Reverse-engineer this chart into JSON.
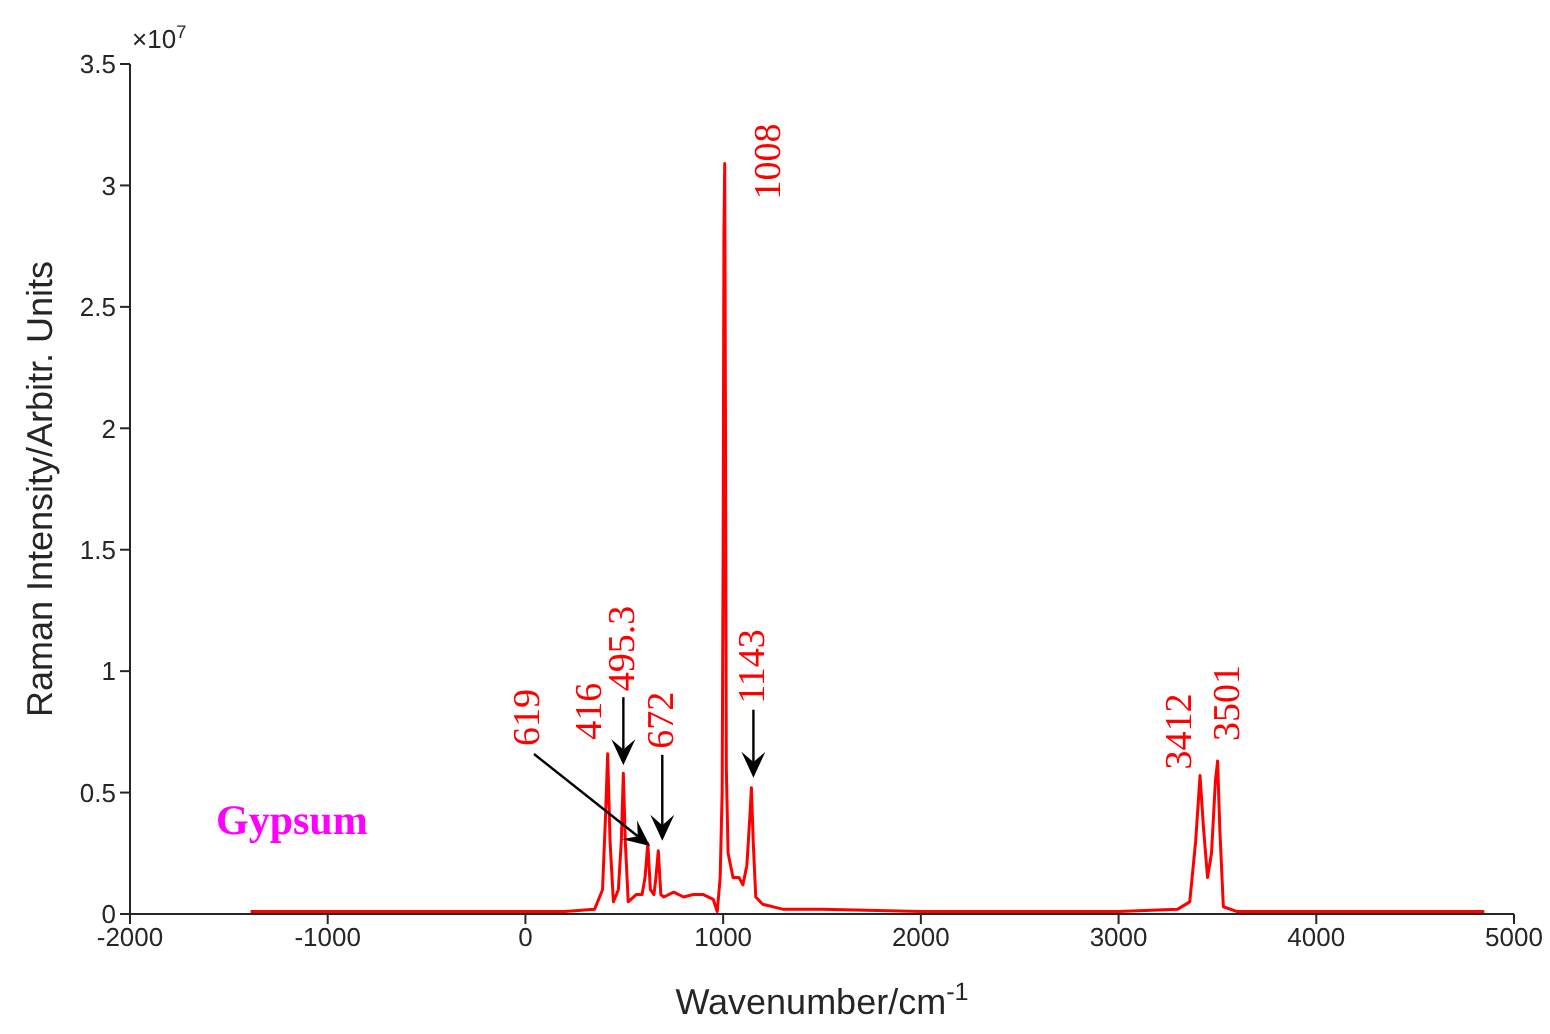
{
  "chart_data": {
    "type": "line",
    "xlabel": "Wavenumber/cm$^{-1}$",
    "ylabel": "Raman Intensity/Arbitr. Units",
    "xlim": [
      -2000,
      5000
    ],
    "xticks": [
      -2000,
      -1000,
      0,
      1000,
      2000,
      3000,
      4000,
      5000
    ],
    "ylim": [
      0,
      3.5
    ],
    "yticks": [
      0,
      0.5,
      1,
      1.5,
      2,
      2.5,
      3,
      3.5
    ],
    "grid": false,
    "legend": false,
    "marker": "none",
    "line_style": "solid",
    "series": [
      {
        "color": "#ff0000",
        "x": [
          -1390,
          -1000,
          -500,
          0,
          200,
          350,
          390,
          405,
          416,
          428,
          445,
          470,
          485,
          495.3,
          505,
          520,
          560,
          590,
          605,
          619,
          632,
          650,
          660,
          672,
          685,
          700,
          750,
          800,
          850,
          900,
          950,
          970,
          985,
          995,
          1000,
          1004,
          1008,
          1012,
          1016,
          1025,
          1050,
          1080,
          1100,
          1120,
          1135,
          1143,
          1152,
          1165,
          1200,
          1300,
          1500,
          2000,
          2500,
          3000,
          3300,
          3360,
          3390,
          3412,
          3430,
          3450,
          3470,
          3490,
          3501,
          3512,
          3530,
          3600,
          4000,
          4500,
          4850
        ],
        "values": [
          0.01,
          0.01,
          0.01,
          0.01,
          0.01,
          0.02,
          0.1,
          0.4,
          0.66,
          0.3,
          0.05,
          0.1,
          0.3,
          0.58,
          0.3,
          0.05,
          0.08,
          0.08,
          0.15,
          0.29,
          0.1,
          0.08,
          0.15,
          0.26,
          0.08,
          0.07,
          0.09,
          0.07,
          0.08,
          0.08,
          0.06,
          0.01,
          0.15,
          0.5,
          1.5,
          2.8,
          3.09,
          2.0,
          0.6,
          0.25,
          0.15,
          0.15,
          0.12,
          0.2,
          0.4,
          0.52,
          0.3,
          0.07,
          0.04,
          0.02,
          0.02,
          0.01,
          0.01,
          0.01,
          0.02,
          0.05,
          0.3,
          0.57,
          0.35,
          0.15,
          0.25,
          0.55,
          0.63,
          0.35,
          0.03,
          0.01,
          0.01,
          0.01,
          0.01
        ]
      }
    ],
    "annotations": [
      "×10$^{7}$",
      "Gypsum",
      "619",
      {
        "text": "416",
        "x": 416,
        "y": 0.66
      },
      {
        "text": "495.3",
        "x": 495.3,
        "y": 0.58
      },
      {
        "text": "672",
        "x": 672,
        "y": 0.26
      },
      {
        "text": "1008",
        "x": 1008,
        "y": 3.09
      },
      {
        "text": "1143",
        "x": 1143,
        "y": 0.52
      },
      {
        "text": "3412",
        "x": 3412,
        "y": 0.57
      },
      {
        "text": "3501",
        "x": 3501,
        "y": 0.63
      }
    ]
  }
}
